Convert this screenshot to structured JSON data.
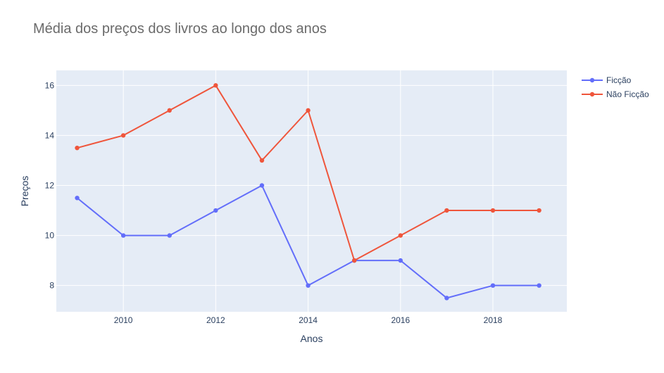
{
  "chart_data": {
    "type": "line",
    "title": "Média dos preços dos livros ao longo dos anos",
    "xlabel": "Anos",
    "ylabel": "Preços",
    "x": [
      2009,
      2010,
      2011,
      2012,
      2013,
      2014,
      2015,
      2016,
      2017,
      2018,
      2019
    ],
    "xlim": [
      2008.55,
      2019.6
    ],
    "ylim": [
      6.95,
      16.6
    ],
    "xticks": [
      2010,
      2012,
      2014,
      2016,
      2018
    ],
    "yticks": [
      8,
      10,
      12,
      14,
      16
    ],
    "grid": true,
    "legend_position": "top-right",
    "plot_background": "#e5ecf6",
    "series": [
      {
        "name": "Ficção",
        "color": "#636efa",
        "values": [
          11.5,
          10,
          10,
          11,
          12,
          8,
          9,
          9,
          7.5,
          8,
          8
        ]
      },
      {
        "name": "Não Ficção",
        "color": "#ef553b",
        "values": [
          13.5,
          14,
          15,
          16,
          13,
          15,
          9,
          10,
          11,
          11,
          11
        ]
      }
    ]
  }
}
